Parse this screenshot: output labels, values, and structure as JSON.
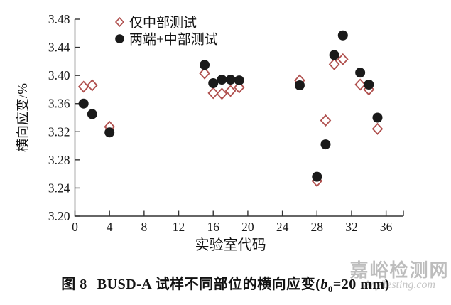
{
  "figure": {
    "caption": {
      "fig_label": "图 8",
      "body": "BUSD-A 试样不同部位的横向应变(",
      "var_name": "b",
      "var_subscript": "0",
      "tail": "=20 mm)"
    },
    "watermark": {
      "line1": "嘉峪检测网",
      "line2": "AnyTesting.com"
    }
  },
  "chart_data": {
    "type": "scatter",
    "title": "",
    "xlabel": "实验室代码",
    "ylabel": "横向应变/%",
    "xlim": [
      0,
      38
    ],
    "ylim": [
      3.2,
      3.48
    ],
    "xticks": [
      0,
      4,
      8,
      12,
      16,
      20,
      24,
      28,
      32,
      36
    ],
    "yticks": [
      "3.20",
      "3.24",
      "3.28",
      "3.32",
      "3.36",
      "3.40",
      "3.44",
      "3.48"
    ],
    "grid": false,
    "legend_position": "top-inside",
    "axis_color": "#333333",
    "series": [
      {
        "name": "仅中部测试",
        "marker": "open-diamond",
        "color": "#b0504e",
        "points": [
          [
            1,
            3.384
          ],
          [
            2,
            3.386
          ],
          [
            4,
            3.327
          ],
          [
            15,
            3.403
          ],
          [
            16,
            3.375
          ],
          [
            17,
            3.374
          ],
          [
            18,
            3.378
          ],
          [
            19,
            3.383
          ],
          [
            26,
            3.393
          ],
          [
            28,
            3.25
          ],
          [
            29,
            3.336
          ],
          [
            30,
            3.416
          ],
          [
            31,
            3.423
          ],
          [
            33,
            3.387
          ],
          [
            34,
            3.38
          ],
          [
            35,
            3.324
          ]
        ]
      },
      {
        "name": "两端+中部测试",
        "marker": "filled-circle",
        "color": "#1a1a1a",
        "points": [
          [
            1,
            3.36
          ],
          [
            2,
            3.345
          ],
          [
            4,
            3.319
          ],
          [
            15,
            3.415
          ],
          [
            16,
            3.389
          ],
          [
            17,
            3.394
          ],
          [
            18,
            3.394
          ],
          [
            19,
            3.393
          ],
          [
            26,
            3.386
          ],
          [
            28,
            3.256
          ],
          [
            29,
            3.302
          ],
          [
            30,
            3.429
          ],
          [
            31,
            3.457
          ],
          [
            33,
            3.404
          ],
          [
            34,
            3.387
          ],
          [
            35,
            3.34
          ]
        ]
      }
    ]
  }
}
